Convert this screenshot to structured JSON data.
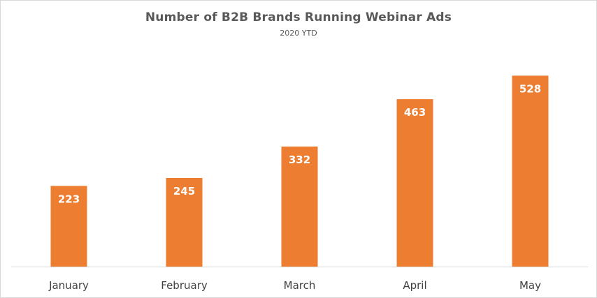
{
  "chart_data": {
    "type": "bar",
    "title": "Number of B2B Brands Running Webinar Ads",
    "subtitle": "2020 YTD",
    "categories": [
      "January",
      "February",
      "March",
      "April",
      "May"
    ],
    "values": [
      223,
      245,
      332,
      463,
      528
    ],
    "data_labels": [
      "223",
      "245",
      "332",
      "463",
      "528"
    ],
    "xlabel": "",
    "ylabel": "",
    "ylim": [
      0,
      550
    ],
    "grid": false,
    "legend": "none",
    "bar_color": "#ED7D31",
    "axis_color": "#D9D9D9"
  }
}
